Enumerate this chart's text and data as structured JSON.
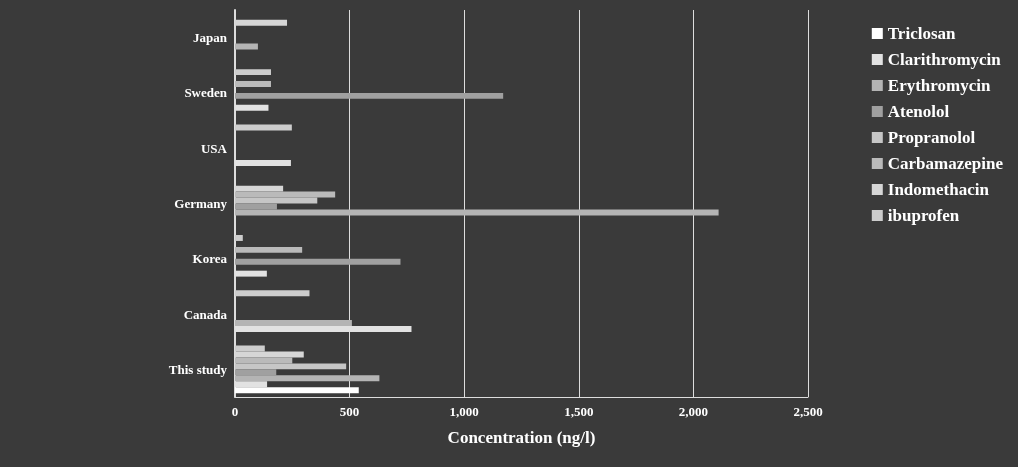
{
  "chart_data": {
    "type": "bar",
    "orientation": "horizontal",
    "xlabel": "Concentration (ng/l)",
    "categories": [
      "Japan",
      "Sweden",
      "USA",
      "Germany",
      "Korea",
      "Canada",
      "This study"
    ],
    "series": [
      {
        "name": "Triclosan",
        "color": "#ffffff",
        "values": [
          null,
          null,
          null,
          null,
          null,
          null,
          540
        ]
      },
      {
        "name": "Clarithromycin",
        "color": "#e2e2e2",
        "values": [
          null,
          146,
          244,
          null,
          139,
          770,
          140
        ]
      },
      {
        "name": "Erythromycin",
        "color": "#b4b4b4",
        "values": [
          100,
          null,
          null,
          2110,
          null,
          510,
          630
        ]
      },
      {
        "name": "Atenolol",
        "color": "#a0a0a0",
        "values": [
          null,
          1170,
          null,
          183,
          722,
          null,
          180
        ]
      },
      {
        "name": "Propranolol",
        "color": "#c6c6c6",
        "values": [
          null,
          null,
          null,
          359,
          null,
          null,
          485
        ]
      },
      {
        "name": "Carbamazepine",
        "color": "#bababa",
        "values": [
          null,
          157,
          null,
          437,
          293,
          null,
          250
        ]
      },
      {
        "name": "Indomethacin",
        "color": "#d6d6d6",
        "values": [
          227,
          null,
          null,
          210,
          null,
          null,
          300
        ]
      },
      {
        "name": "ibuprofen",
        "color": "#cdcdcd",
        "values": [
          null,
          157,
          248,
          null,
          34,
          325,
          130
        ]
      }
    ],
    "xlim": [
      0,
      2500
    ],
    "xticks": [
      0,
      500,
      {
        "value": 1000,
        "label": "1,000"
      },
      {
        "value": 1500,
        "label": "1,500"
      },
      {
        "value": 2000,
        "label": "2,000"
      },
      {
        "value": 2500,
        "label": "2,500"
      }
    ],
    "grid": "x",
    "legend": "right"
  }
}
